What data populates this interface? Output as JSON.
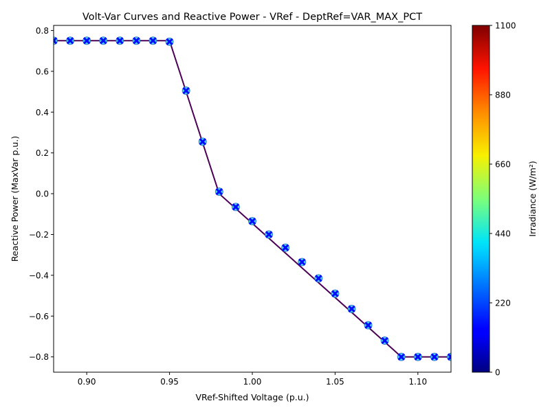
{
  "chart_data": {
    "type": "scatter",
    "title": "Volt-Var Curves and Reactive Power - VRef - DeptRef=VAR_MAX_PCT",
    "xlabel": "VRef-Shifted Voltage (p.u.)",
    "ylabel": "Reactive Power (MaxVar p.u.)",
    "xlim": [
      0.88,
      1.12
    ],
    "ylim": [
      -0.875,
      0.825
    ],
    "xticks": [
      {
        "value": 0.9,
        "label": "0.90"
      },
      {
        "value": 0.95,
        "label": "0.95"
      },
      {
        "value": 1.0,
        "label": "1.00"
      },
      {
        "value": 1.05,
        "label": "1.05"
      },
      {
        "value": 1.1,
        "label": "1.10"
      }
    ],
    "yticks": [
      {
        "value": 0.8,
        "label": "0.8"
      },
      {
        "value": 0.6,
        "label": "0.6"
      },
      {
        "value": 0.4,
        "label": "0.4"
      },
      {
        "value": 0.2,
        "label": "0.2"
      },
      {
        "value": 0.0,
        "label": "0.0"
      },
      {
        "value": -0.2,
        "label": "−0.2"
      },
      {
        "value": -0.4,
        "label": "−0.4"
      },
      {
        "value": -0.6,
        "label": "−0.6"
      },
      {
        "value": -0.8,
        "label": "−0.8"
      }
    ],
    "grid": false,
    "curve": {
      "color": "#4b0055",
      "x": [
        0.88,
        0.95,
        0.96,
        0.97,
        0.98,
        1.09,
        1.12
      ],
      "y": [
        0.75,
        0.75,
        0.5,
        0.25,
        0.0,
        -0.8,
        -0.8
      ]
    },
    "points": {
      "x": [
        0.88,
        0.89,
        0.9,
        0.91,
        0.92,
        0.93,
        0.94,
        0.95,
        0.96,
        0.97,
        0.98,
        0.99,
        1.0,
        1.01,
        1.02,
        1.03,
        1.04,
        1.05,
        1.06,
        1.07,
        1.08,
        1.09,
        1.1,
        1.11,
        1.12
      ],
      "y": [
        0.75,
        0.75,
        0.75,
        0.75,
        0.75,
        0.75,
        0.75,
        0.745,
        0.505,
        0.255,
        0.01,
        -0.065,
        -0.135,
        -0.2,
        -0.265,
        -0.335,
        -0.415,
        -0.49,
        -0.565,
        -0.645,
        -0.72,
        -0.8,
        -0.8,
        -0.8,
        -0.8
      ],
      "irradiance": [
        150,
        150,
        150,
        150,
        150,
        150,
        150,
        150,
        150,
        150,
        150,
        150,
        150,
        150,
        150,
        150,
        150,
        150,
        150,
        150,
        150,
        150,
        150,
        150,
        150
      ]
    },
    "colorbar": {
      "label": "Irradiance (W/m²)",
      "min": 0,
      "max": 1100,
      "ticks": [
        {
          "value": 0,
          "label": "0"
        },
        {
          "value": 220,
          "label": "220"
        },
        {
          "value": 440,
          "label": "440"
        },
        {
          "value": 660,
          "label": "660"
        },
        {
          "value": 880,
          "label": "880"
        },
        {
          "value": 1100,
          "label": "1100"
        }
      ],
      "colormap": "jet"
    }
  }
}
